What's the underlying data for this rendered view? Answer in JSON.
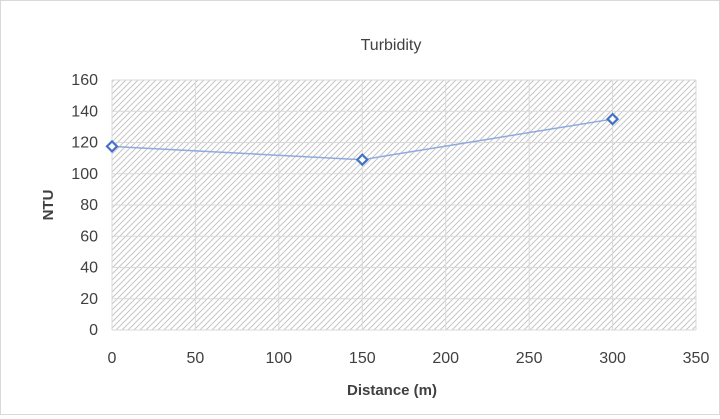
{
  "chart_data": {
    "type": "scatter",
    "title": "Turbidity",
    "xlabel": "Distance (m)",
    "ylabel": "NTU",
    "xlim": [
      0,
      350
    ],
    "ylim": [
      0,
      160
    ],
    "x_ticks": [
      "0",
      "50",
      "100",
      "150",
      "200",
      "250",
      "300",
      "350"
    ],
    "y_ticks": [
      "0",
      "20",
      "40",
      "60",
      "80",
      "100",
      "120",
      "140",
      "160"
    ],
    "grid": true,
    "plot_background": "hatched",
    "series": [
      {
        "points": [
          [
            0,
            117.5
          ],
          [
            150,
            109
          ],
          [
            300,
            135
          ]
        ],
        "color": "#4472c4",
        "line_color": "#8faadc",
        "marker": "diamond"
      }
    ]
  }
}
